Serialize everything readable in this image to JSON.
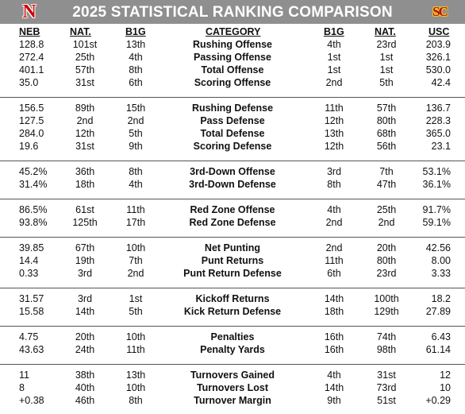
{
  "title": "2025 STATISTICAL RANKING COMPARISON",
  "logos": {
    "left": "N",
    "right": "SC"
  },
  "colors": {
    "header_bg": "#8f8f8f",
    "nebraska_red": "#d00000",
    "usc_cardinal": "#b3121f",
    "usc_gold": "#f5c518"
  },
  "headers": {
    "neb": "NEB",
    "nat_left": "NAT.",
    "b1g_left": "B1G",
    "category": "CATEGORY",
    "b1g_right": "B1G",
    "nat_right": "NAT.",
    "usc": "USC"
  },
  "sections": [
    {
      "rows": [
        {
          "neb": "128.8",
          "nat1": "101st",
          "b1g1": "13th",
          "cat": "Rushing Offense",
          "b1g2": "4th",
          "nat2": "23rd",
          "usc": "203.9"
        },
        {
          "neb": "272.4",
          "nat1": "25th",
          "b1g1": "4th",
          "cat": "Passing Offense",
          "b1g2": "1st",
          "nat2": "1st",
          "usc": "326.1"
        },
        {
          "neb": "401.1",
          "nat1": "57th",
          "b1g1": "8th",
          "cat": "Total Offense",
          "b1g2": "1st",
          "nat2": "1st",
          "usc": "530.0"
        },
        {
          "neb": "35.0",
          "nat1": "31st",
          "b1g1": "6th",
          "cat": "Scoring Offense",
          "b1g2": "2nd",
          "nat2": "5th",
          "usc": "42.4"
        }
      ]
    },
    {
      "rows": [
        {
          "neb": "156.5",
          "nat1": "89th",
          "b1g1": "15th",
          "cat": "Rushing Defense",
          "b1g2": "11th",
          "nat2": "57th",
          "usc": "136.7"
        },
        {
          "neb": "127.5",
          "nat1": "2nd",
          "b1g1": "2nd",
          "cat": "Pass Defense",
          "b1g2": "12th",
          "nat2": "80th",
          "usc": "228.3"
        },
        {
          "neb": "284.0",
          "nat1": "12th",
          "b1g1": "5th",
          "cat": "Total Defense",
          "b1g2": "13th",
          "nat2": "68th",
          "usc": "365.0"
        },
        {
          "neb": "19.6",
          "nat1": "31st",
          "b1g1": "9th",
          "cat": "Scoring Defense",
          "b1g2": "12th",
          "nat2": "56th",
          "usc": "23.1"
        }
      ]
    },
    {
      "rows": [
        {
          "neb": "45.2%",
          "nat1": "36th",
          "b1g1": "8th",
          "cat": "3rd-Down Offense",
          "b1g2": "3rd",
          "nat2": "7th",
          "usc": "53.1%"
        },
        {
          "neb": "31.4%",
          "nat1": "18th",
          "b1g1": "4th",
          "cat": "3rd-Down Defense",
          "b1g2": "8th",
          "nat2": "47th",
          "usc": "36.1%"
        }
      ]
    },
    {
      "rows": [
        {
          "neb": "86.5%",
          "nat1": "61st",
          "b1g1": "11th",
          "cat": "Red Zone Offense",
          "b1g2": "4th",
          "nat2": "25th",
          "usc": "91.7%"
        },
        {
          "neb": "93.8%",
          "nat1": "125th",
          "b1g1": "17th",
          "cat": "Red Zone Defense",
          "b1g2": "2nd",
          "nat2": "2nd",
          "usc": "59.1%"
        }
      ]
    },
    {
      "rows": [
        {
          "neb": "39.85",
          "nat1": "67th",
          "b1g1": "10th",
          "cat": "Net Punting",
          "b1g2": "2nd",
          "nat2": "20th",
          "usc": "42.56"
        },
        {
          "neb": "14.4",
          "nat1": "19th",
          "b1g1": "7th",
          "cat": "Punt Returns",
          "b1g2": "11th",
          "nat2": "80th",
          "usc": "8.00"
        },
        {
          "neb": "0.33",
          "nat1": "3rd",
          "b1g1": "2nd",
          "cat": "Punt Return Defense",
          "b1g2": "6th",
          "nat2": "23rd",
          "usc": "3.33"
        }
      ]
    },
    {
      "rows": [
        {
          "neb": "31.57",
          "nat1": "3rd",
          "b1g1": "1st",
          "cat": "Kickoff Returns",
          "b1g2": "14th",
          "nat2": "100th",
          "usc": "18.2"
        },
        {
          "neb": "15.58",
          "nat1": "14th",
          "b1g1": "5th",
          "cat": "Kick Return Defense",
          "b1g2": "18th",
          "nat2": "129th",
          "usc": "27.89"
        }
      ]
    },
    {
      "rows": [
        {
          "neb": "4.75",
          "nat1": "20th",
          "b1g1": "10th",
          "cat": "Penalties",
          "b1g2": "16th",
          "nat2": "74th",
          "usc": "6.43"
        },
        {
          "neb": "43.63",
          "nat1": "24th",
          "b1g1": "11th",
          "cat": "Penalty Yards",
          "b1g2": "16th",
          "nat2": "98th",
          "usc": "61.14"
        }
      ]
    },
    {
      "rows": [
        {
          "neb": "11",
          "nat1": "38th",
          "b1g1": "13th",
          "cat": "Turnovers Gained",
          "b1g2": "4th",
          "nat2": "31st",
          "usc": "12"
        },
        {
          "neb": "8",
          "nat1": "40th",
          "b1g1": "10th",
          "cat": "Turnovers Lost",
          "b1g2": "14th",
          "nat2": "73rd",
          "usc": "10"
        },
        {
          "neb": "+0.38",
          "nat1": "46th",
          "b1g1": "8th",
          "cat": "Turnover Margin",
          "b1g2": "9th",
          "nat2": "51st",
          "usc": "+0.29"
        }
      ]
    }
  ]
}
